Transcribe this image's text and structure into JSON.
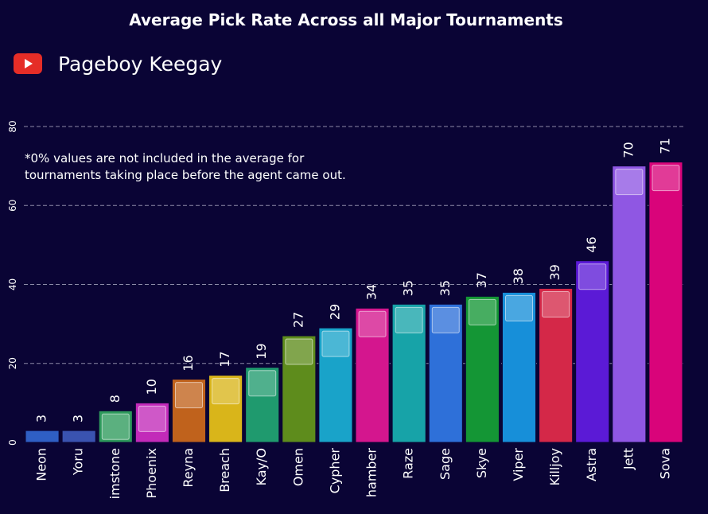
{
  "chart_data": {
    "type": "bar",
    "title": "Average Pick Rate Across all Major Tournaments",
    "xlabel": "",
    "ylabel": "",
    "ylim": [
      0,
      80
    ],
    "yticks": [
      0,
      20,
      40,
      60,
      80
    ],
    "grid": true,
    "categories": [
      "Neon",
      "Yoru",
      "imstone",
      "Phoenix",
      "Reyna",
      "Breach",
      "Kay/O",
      "Omen",
      "Cypher",
      "hamber",
      "Raze",
      "Sage",
      "Skye",
      "Viper",
      "Killjoy",
      "Astra",
      "Jett",
      "Sova"
    ],
    "values": [
      3,
      3,
      8,
      10,
      16,
      17,
      19,
      27,
      29,
      34,
      35,
      35,
      37,
      38,
      39,
      46,
      70,
      71
    ],
    "colors": [
      "#2f5fc4",
      "#3a53b0",
      "#2e9a5c",
      "#c22ab9",
      "#c0621c",
      "#d9b51a",
      "#1f9a6e",
      "#5e8c1c",
      "#19a3c9",
      "#d4168e",
      "#17a3a8",
      "#2e70d9",
      "#149635",
      "#178fd9",
      "#d42848",
      "#5b1ad6",
      "#8f57e3",
      "#d9047a"
    ],
    "note": [
      "*0% values are not included in the average for",
      "tournaments taking place before the agent came out."
    ]
  },
  "brand": {
    "icon": "youtube-icon",
    "name": "Pageboy Keegay",
    "icon_color": "#e52d27"
  },
  "colors": {
    "background": "#0a0435",
    "gridline": "#8d8aa8",
    "text": "#ffffff"
  }
}
